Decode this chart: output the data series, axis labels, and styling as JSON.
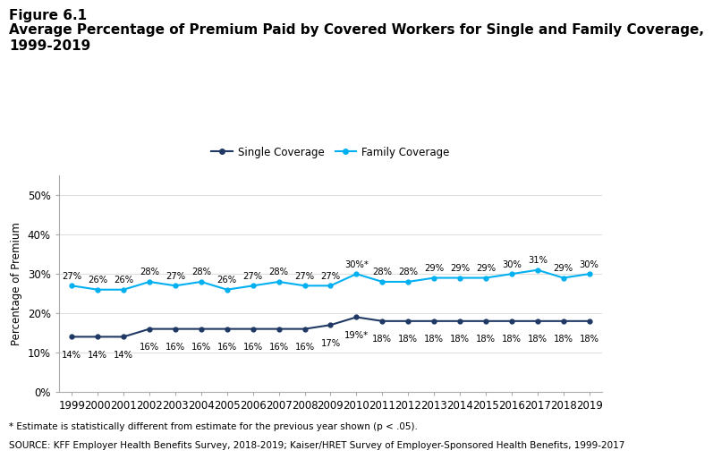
{
  "years": [
    1999,
    2000,
    2001,
    2002,
    2003,
    2004,
    2005,
    2006,
    2007,
    2008,
    2009,
    2010,
    2011,
    2012,
    2013,
    2014,
    2015,
    2016,
    2017,
    2018,
    2019
  ],
  "single_values": [
    14,
    14,
    14,
    16,
    16,
    16,
    16,
    16,
    16,
    16,
    17,
    19,
    18,
    18,
    18,
    18,
    18,
    18,
    18,
    18,
    18
  ],
  "family_values": [
    27,
    26,
    26,
    28,
    27,
    28,
    26,
    27,
    28,
    27,
    27,
    30,
    28,
    28,
    29,
    29,
    29,
    30,
    31,
    29,
    30
  ],
  "single_labels": [
    "14%",
    "14%",
    "14%",
    "16%",
    "16%",
    "16%",
    "16%",
    "16%",
    "16%",
    "16%",
    "17%",
    "19%*",
    "18%",
    "18%",
    "18%",
    "18%",
    "18%",
    "18%",
    "18%",
    "18%",
    "18%"
  ],
  "family_labels": [
    "27%",
    "26%",
    "26%",
    "28%",
    "27%",
    "28%",
    "26%",
    "27%",
    "28%",
    "27%",
    "27%",
    "30%*",
    "28%",
    "28%",
    "29%",
    "29%",
    "29%",
    "30%",
    "31%",
    "29%",
    "30%"
  ],
  "single_color": "#1f3864",
  "family_color": "#00b0f0",
  "figure_title_line1": "Figure 6.1",
  "figure_title_line2": "Average Percentage of Premium Paid by Covered Workers for Single and Family Coverage,",
  "figure_title_line3": "1999-2019",
  "ylabel": "Percentage of Premium",
  "ylim": [
    0,
    55
  ],
  "yticks": [
    0,
    10,
    20,
    30,
    40,
    50
  ],
  "yticklabels": [
    "0%",
    "10%",
    "20%",
    "30%",
    "40%",
    "50%"
  ],
  "footnote1": "* Estimate is statistically different from estimate for the previous year shown (p < .05).",
  "footnote2": "SOURCE: KFF Employer Health Benefits Survey, 2018-2019; Kaiser/HRET Survey of Employer-Sponsored Health Benefits, 1999-2017",
  "legend_single": "Single Coverage",
  "legend_family": "Family Coverage",
  "bg_color": "#ffffff",
  "label_fontsize": 7.2,
  "axis_fontsize": 8.5,
  "title_fontsize": 11,
  "footnote_fontsize": 7.5
}
